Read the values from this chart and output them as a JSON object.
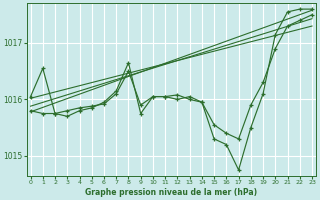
{
  "title": "Graphe pression niveau de la mer (hPa)",
  "bg_color": "#cceaea",
  "grid_color": "#ffffff",
  "line_color": "#2d6e2d",
  "x_ticks": [
    0,
    1,
    2,
    3,
    4,
    5,
    6,
    7,
    8,
    9,
    10,
    11,
    12,
    13,
    14,
    15,
    16,
    17,
    18,
    19,
    20,
    21,
    22,
    23
  ],
  "y_ticks": [
    1015,
    1016,
    1017
  ],
  "ylim": [
    1014.65,
    1017.7
  ],
  "xlim": [
    -0.3,
    23.3
  ],
  "series1_y": [
    1016.05,
    1016.55,
    1015.75,
    1015.7,
    1015.8,
    1015.85,
    1015.95,
    1016.15,
    1016.65,
    1015.75,
    1016.05,
    1016.05,
    1016.0,
    1016.05,
    1015.95,
    1015.3,
    1015.2,
    1014.75,
    1015.5,
    1016.1,
    1017.15,
    1017.55,
    1017.6,
    1017.6
  ],
  "series2_y": [
    1015.8,
    1015.75,
    1015.75,
    1015.8,
    1015.85,
    1015.88,
    1015.92,
    1016.1,
    1016.5,
    1015.9,
    1016.05,
    1016.05,
    1016.08,
    1016.0,
    1015.95,
    1015.55,
    1015.4,
    1015.3,
    1015.9,
    1016.3,
    1016.9,
    1017.3,
    1017.4,
    1017.5
  ],
  "trend1_y": [
    1015.78,
    1017.58
  ],
  "trend2_y": [
    1015.88,
    1017.43
  ],
  "trend3_y": [
    1016.02,
    1017.3
  ]
}
